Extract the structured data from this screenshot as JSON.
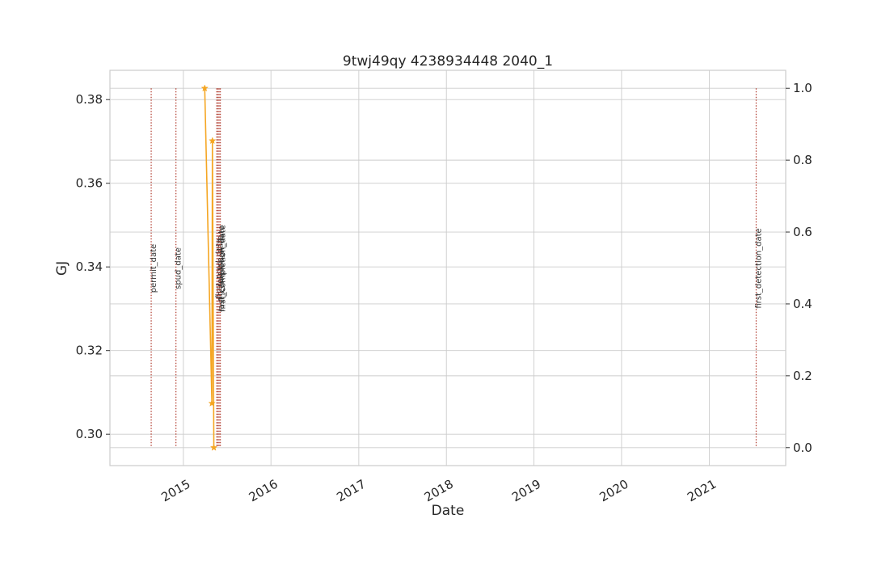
{
  "chart_data": {
    "type": "line",
    "title": "9twj49qy 4238934448 2040_1",
    "xlabel": "Date",
    "ylabel": "GJ",
    "ylabel_color": "#2b7bba",
    "xlim": [
      "2014-03-01",
      "2021-11-15"
    ],
    "ylim": [
      0.2925,
      0.387
    ],
    "y2lim": [
      -0.05,
      1.05
    ],
    "x_ticks": [
      {
        "date": "2015-01-01",
        "label": "2015"
      },
      {
        "date": "2016-01-01",
        "label": "2016"
      },
      {
        "date": "2017-01-01",
        "label": "2017"
      },
      {
        "date": "2018-01-01",
        "label": "2018"
      },
      {
        "date": "2019-01-01",
        "label": "2019"
      },
      {
        "date": "2020-01-01",
        "label": "2020"
      },
      {
        "date": "2021-01-01",
        "label": "2021"
      }
    ],
    "y_ticks": [
      {
        "value": 0.3,
        "label": "0.30"
      },
      {
        "value": 0.32,
        "label": "0.32"
      },
      {
        "value": 0.34,
        "label": "0.34"
      },
      {
        "value": 0.36,
        "label": "0.36"
      },
      {
        "value": 0.38,
        "label": "0.38"
      }
    ],
    "y2_ticks": [
      {
        "value": 0.0,
        "label": "0.0"
      },
      {
        "value": 0.2,
        "label": "0.2"
      },
      {
        "value": 0.4,
        "label": "0.4"
      },
      {
        "value": 0.6,
        "label": "0.6"
      },
      {
        "value": 0.8,
        "label": "0.8"
      },
      {
        "value": 1.0,
        "label": "1.0"
      }
    ],
    "grid": true,
    "series": [
      {
        "axis": "right",
        "color": "#f5a623",
        "marker": "star",
        "points": [
          {
            "x": "2015-03-31",
            "y": 1.0
          },
          {
            "x": "2015-04-30",
            "y": 0.1232
          },
          {
            "x": "2015-05-02",
            "y": 0.854
          },
          {
            "x": "2015-05-08",
            "y": 0.0
          }
        ]
      }
    ],
    "events": [
      {
        "date": "2014-08-20",
        "label": "permit_date"
      },
      {
        "date": "2014-12-01",
        "label": "spud_date"
      },
      {
        "date": "2015-05-20",
        "label": "first_prod_date"
      },
      {
        "date": "2015-05-25",
        "label": "rig_release_date"
      },
      {
        "date": "2015-05-30",
        "label": "last_completion_date"
      },
      {
        "date": "2015-06-04",
        "label": "first_completion_date"
      },
      {
        "date": "2021-07-15",
        "label": "first_detection_date"
      }
    ],
    "event_color": "#b5473a"
  }
}
